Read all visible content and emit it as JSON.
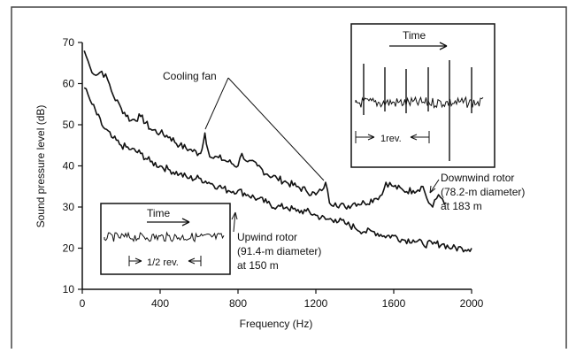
{
  "colors": {
    "ink": "#111111",
    "frame": "#444444",
    "background": "#ffffff"
  },
  "chart_data": {
    "type": "line",
    "xlabel": "Frequency (Hz)",
    "ylabel": "Sound pressure level (dB)",
    "xlim": [
      0,
      2000
    ],
    "ylim": [
      10,
      70
    ],
    "x_ticks": [
      "0",
      "400",
      "800",
      "1200",
      "1600",
      "2000"
    ],
    "y_ticks": [
      "10",
      "20",
      "30",
      "40",
      "50",
      "60",
      "70"
    ],
    "grid": false,
    "series": [
      {
        "name": "Downwind rotor",
        "label_lines": [
          "Downwind rotor",
          "(78.2-m diameter)",
          "at 183 m"
        ],
        "x": [
          10,
          40,
          70,
          100,
          130,
          160,
          200,
          250,
          300,
          350,
          400,
          450,
          500,
          550,
          600,
          615,
          630,
          645,
          665,
          700,
          750,
          800,
          820,
          850,
          900,
          950,
          1000,
          1050,
          1100,
          1150,
          1200,
          1230,
          1250,
          1270,
          1300,
          1350,
          1400,
          1450,
          1500,
          1540,
          1560,
          1600,
          1650,
          1700,
          1750,
          1780,
          1800,
          1830,
          1850,
          1870
        ],
        "y": [
          68,
          64,
          62,
          63,
          61,
          57,
          54,
          51,
          52,
          49,
          48,
          47,
          45,
          44,
          43,
          44,
          48,
          44,
          42,
          42,
          41,
          40,
          43,
          41,
          40,
          38,
          37,
          36,
          35,
          34,
          33,
          34,
          36,
          31,
          31,
          30,
          31,
          31,
          32,
          33,
          36,
          35,
          34,
          34,
          35,
          31,
          30,
          33,
          32,
          31
        ]
      },
      {
        "name": "Upwind rotor",
        "label_lines": [
          "Upwind rotor",
          "(91.4-m diameter)",
          "at 150 m"
        ],
        "x": [
          10,
          50,
          100,
          150,
          200,
          250,
          300,
          350,
          400,
          450,
          500,
          550,
          600,
          650,
          700,
          750,
          800,
          850,
          900,
          950,
          1000,
          1050,
          1100,
          1150,
          1200,
          1250,
          1300,
          1350,
          1400,
          1450,
          1500,
          1550,
          1600,
          1650,
          1700,
          1750,
          1800,
          1850,
          1900,
          1950,
          2000
        ],
        "y": [
          59,
          55,
          50,
          47,
          45,
          44,
          43,
          41,
          40,
          39,
          38,
          37,
          37,
          36,
          35,
          34,
          34,
          33,
          32,
          31,
          30,
          30,
          29,
          29,
          28,
          27,
          27,
          26,
          25,
          24,
          24,
          23,
          23,
          22,
          22,
          21,
          21,
          21,
          20,
          20,
          20
        ]
      }
    ],
    "annotations": [
      {
        "text": "Cooling fan",
        "points": [
          [
            640,
            48
          ],
          [
            1250,
            36
          ]
        ]
      }
    ],
    "insets": [
      {
        "title": "Time",
        "span_label": "1rev.",
        "series": "Downwind rotor"
      },
      {
        "title": "Time",
        "span_label": "1/2 rev.",
        "series": "Upwind rotor"
      }
    ]
  }
}
